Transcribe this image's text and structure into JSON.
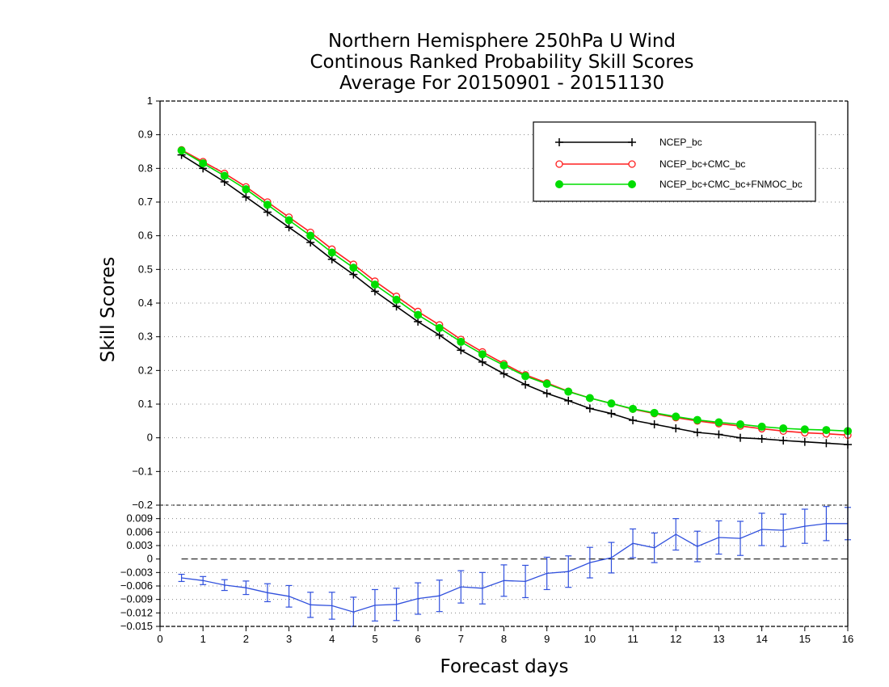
{
  "chart_data": {
    "type": "line",
    "title": [
      "Northern Hemisphere 250hPa U Wind",
      "Continous Ranked Probability Skill Scores",
      "Average For 20150901 - 20151130"
    ],
    "xlabel": "Forecast days",
    "ylabel": "Skill Scores",
    "xlim": [
      0,
      16
    ],
    "x_ticks": [
      "0",
      "1",
      "2",
      "3",
      "4",
      "5",
      "6",
      "7",
      "8",
      "9",
      "10",
      "11",
      "12",
      "13",
      "14",
      "15",
      "16"
    ],
    "top_panel": {
      "ylim": [
        -0.2,
        1
      ],
      "y_ticks": [
        "1",
        "0.9",
        "0.8",
        "0.7",
        "0.6",
        "0.5",
        "0.4",
        "0.3",
        "0.2",
        "0.1",
        "0",
        "−0.1",
        "−0.2"
      ],
      "grid": "dotted horizontal",
      "legend_position": "top-right",
      "x": [
        0.5,
        1,
        1.5,
        2,
        2.5,
        3,
        3.5,
        4,
        4.5,
        5,
        5.5,
        6,
        6.5,
        7,
        7.5,
        8,
        8.5,
        9,
        9.5,
        10,
        10.5,
        11,
        11.5,
        12,
        12.5,
        13,
        13.5,
        14,
        14.5,
        15,
        15.5,
        16
      ],
      "series": [
        {
          "name": "NCEP_bc",
          "color": "#000000",
          "marker": "plus",
          "values": [
            0.84,
            0.8,
            0.76,
            0.715,
            0.67,
            0.625,
            0.58,
            0.53,
            0.485,
            0.435,
            0.39,
            0.345,
            0.305,
            0.26,
            0.225,
            0.19,
            0.158,
            0.132,
            0.11,
            0.087,
            0.072,
            0.052,
            0.04,
            0.028,
            0.016,
            0.01,
            0.0,
            -0.003,
            -0.008,
            -0.012,
            -0.016,
            -0.02
          ]
        },
        {
          "name": "NCEP_bc+CMC_bc",
          "color": "#ff2020",
          "marker": "open-circle",
          "values": [
            0.855,
            0.82,
            0.785,
            0.745,
            0.7,
            0.655,
            0.61,
            0.56,
            0.515,
            0.465,
            0.42,
            0.375,
            0.335,
            0.292,
            0.255,
            0.22,
            0.187,
            0.163,
            0.138,
            0.118,
            0.102,
            0.085,
            0.072,
            0.06,
            0.05,
            0.042,
            0.035,
            0.027,
            0.02,
            0.015,
            0.012,
            0.008
          ]
        },
        {
          "name": "NCEP_bc+CMC_bc+FNMOC_bc",
          "color": "#00dd00",
          "marker": "filled-circle",
          "values": [
            0.853,
            0.815,
            0.778,
            0.738,
            0.692,
            0.646,
            0.6,
            0.55,
            0.505,
            0.455,
            0.41,
            0.365,
            0.326,
            0.285,
            0.248,
            0.215,
            0.183,
            0.16,
            0.137,
            0.118,
            0.102,
            0.086,
            0.074,
            0.063,
            0.053,
            0.046,
            0.04,
            0.033,
            0.028,
            0.025,
            0.023,
            0.02
          ]
        }
      ]
    },
    "bottom_panel": {
      "ylim": [
        -0.015,
        0.012
      ],
      "y_ticks": [
        "0.009",
        "0.006",
        "0.003",
        "0",
        "−0.003",
        "−0.006",
        "−0.009",
        "−0.012",
        "−0.015"
      ],
      "grid": "dotted horizontal, dashed zero line",
      "color": "#3050dd",
      "x": [
        0.5,
        1,
        1.5,
        2,
        2.5,
        3,
        3.5,
        4,
        4.5,
        5,
        5.5,
        6,
        6.5,
        7,
        7.5,
        8,
        8.5,
        9,
        9.5,
        10,
        10.5,
        11,
        11.5,
        12,
        12.5,
        13,
        13.5,
        14,
        14.5,
        15,
        15.5,
        16
      ],
      "values": [
        -0.0042,
        -0.0048,
        -0.0058,
        -0.0064,
        -0.0075,
        -0.0083,
        -0.0102,
        -0.0104,
        -0.0118,
        -0.0103,
        -0.0101,
        -0.0088,
        -0.0082,
        -0.0062,
        -0.0065,
        -0.0048,
        -0.005,
        -0.0032,
        -0.0028,
        -0.0008,
        0.0003,
        0.0035,
        0.0025,
        0.0055,
        0.0028,
        0.0048,
        0.0046,
        0.0066,
        0.0064,
        0.0073,
        0.0079,
        0.0079
      ],
      "error": [
        0.0008,
        0.0009,
        0.0012,
        0.0015,
        0.002,
        0.0024,
        0.0028,
        0.003,
        0.0033,
        0.0035,
        0.0036,
        0.0035,
        0.0035,
        0.0036,
        0.0035,
        0.0035,
        0.0036,
        0.0036,
        0.0035,
        0.0034,
        0.0034,
        0.0032,
        0.0033,
        0.0035,
        0.0034,
        0.0037,
        0.0038,
        0.0036,
        0.0036,
        0.0038,
        0.0038,
        0.0036
      ]
    }
  }
}
